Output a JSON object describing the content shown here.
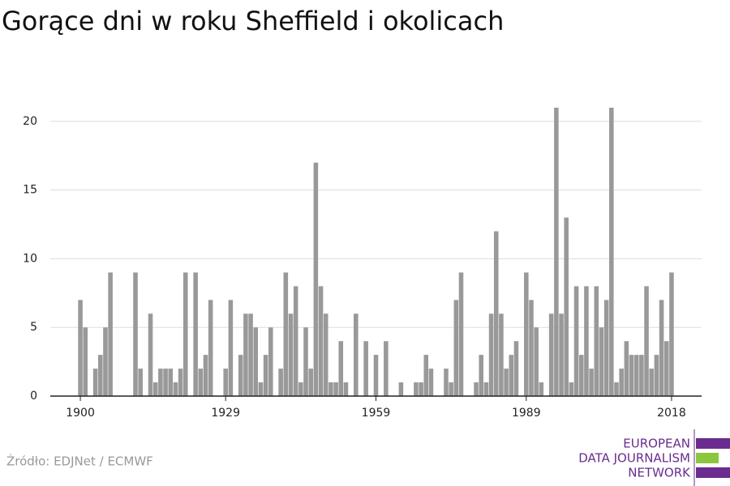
{
  "chart_data": {
    "type": "bar",
    "title": "Gorące dni w roku Sheffield i okolicach",
    "x": [
      1900,
      1901,
      1902,
      1903,
      1904,
      1905,
      1906,
      1907,
      1908,
      1909,
      1910,
      1911,
      1912,
      1913,
      1914,
      1915,
      1916,
      1917,
      1918,
      1919,
      1920,
      1921,
      1922,
      1923,
      1924,
      1925,
      1926,
      1927,
      1928,
      1929,
      1930,
      1931,
      1932,
      1933,
      1934,
      1935,
      1936,
      1937,
      1938,
      1939,
      1940,
      1941,
      1942,
      1943,
      1944,
      1945,
      1946,
      1947,
      1948,
      1949,
      1950,
      1951,
      1952,
      1953,
      1954,
      1955,
      1956,
      1957,
      1958,
      1959,
      1960,
      1961,
      1962,
      1963,
      1964,
      1965,
      1966,
      1967,
      1968,
      1969,
      1970,
      1971,
      1972,
      1973,
      1974,
      1975,
      1976,
      1977,
      1978,
      1979,
      1980,
      1981,
      1982,
      1983,
      1984,
      1985,
      1986,
      1987,
      1988,
      1989,
      1990,
      1991,
      1992,
      1993,
      1994,
      1995,
      1996,
      1997,
      1998,
      1999,
      2000,
      2001,
      2002,
      2003,
      2004,
      2005,
      2006,
      2007,
      2008,
      2009,
      2010,
      2011,
      2012,
      2013,
      2014,
      2015,
      2016,
      2017,
      2018
    ],
    "values": [
      7,
      5,
      0,
      2,
      3,
      5,
      9,
      0,
      0,
      0,
      0,
      9,
      2,
      0,
      6,
      1,
      2,
      2,
      2,
      1,
      2,
      9,
      0,
      9,
      2,
      3,
      7,
      0,
      0,
      2,
      7,
      0,
      3,
      6,
      6,
      5,
      1,
      3,
      5,
      0,
      2,
      9,
      6,
      8,
      1,
      5,
      2,
      17,
      8,
      6,
      1,
      1,
      4,
      1,
      0,
      6,
      0,
      4,
      0,
      3,
      0,
      4,
      0,
      0,
      1,
      0,
      0,
      1,
      1,
      3,
      2,
      0,
      0,
      2,
      1,
      7,
      9,
      0,
      0,
      1,
      3,
      1,
      6,
      12,
      6,
      2,
      3,
      4,
      0,
      9,
      7,
      5,
      1,
      0,
      6,
      21,
      6,
      13,
      1,
      8,
      3,
      8,
      2,
      8,
      5,
      7,
      21,
      1,
      2,
      4,
      3,
      3,
      3,
      8,
      2,
      3,
      7,
      4,
      9
    ],
    "color": "#999999",
    "xlim": [
      1894,
      2024
    ],
    "xticks": [
      1900,
      1929,
      1959,
      1989,
      2018
    ],
    "ylim": [
      0,
      22
    ],
    "yticks": [
      0,
      5,
      10,
      15,
      20
    ],
    "grid": true,
    "source": "Źródło: EDJNet / ECMWF",
    "logo": [
      "EUROPEAN",
      "DATA JOURNALISM",
      "NETWORK"
    ]
  }
}
